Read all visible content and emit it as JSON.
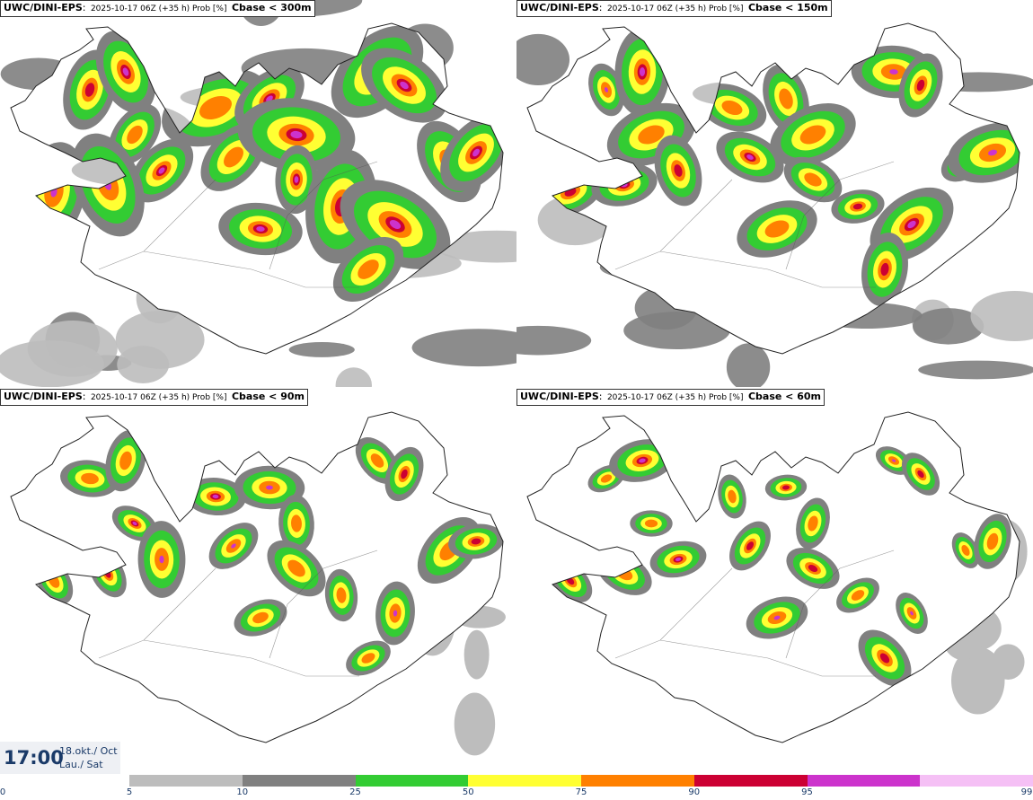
{
  "panels": [
    {
      "model": "UWC/DINI-EPS",
      "run": "2025-10-17 06Z (+35 h) Prob [%]",
      "variable": "Cbase < 300m",
      "threshold_m": 300
    },
    {
      "model": "UWC/DINI-EPS",
      "run": "2025-10-17 06Z (+35 h) Prob [%]",
      "variable": "Cbase < 150m",
      "threshold_m": 150
    },
    {
      "model": "UWC/DINI-EPS",
      "run": "2025-10-17 06Z (+35 h) Prob [%]",
      "variable": "Cbase < 90m",
      "threshold_m": 90
    },
    {
      "model": "UWC/DINI-EPS",
      "run": "2025-10-17 06Z (+35 h) Prob [%]",
      "variable": "Cbase < 60m",
      "threshold_m": 60
    }
  ],
  "valid_time": {
    "time": "17:00",
    "date_line1": "18.okt./ Oct",
    "date_line2": "Lau./ Sat"
  },
  "colorbar": {
    "ticks": [
      "0",
      "5",
      "10",
      "25",
      "50",
      "75",
      "90",
      "95",
      "99"
    ],
    "colors": [
      "#bdbdbd",
      "#808080",
      "#33cc33",
      "#ffff33",
      "#ff8000",
      "#cc0033",
      "#cc33cc",
      "#f5c0f5"
    ]
  }
}
